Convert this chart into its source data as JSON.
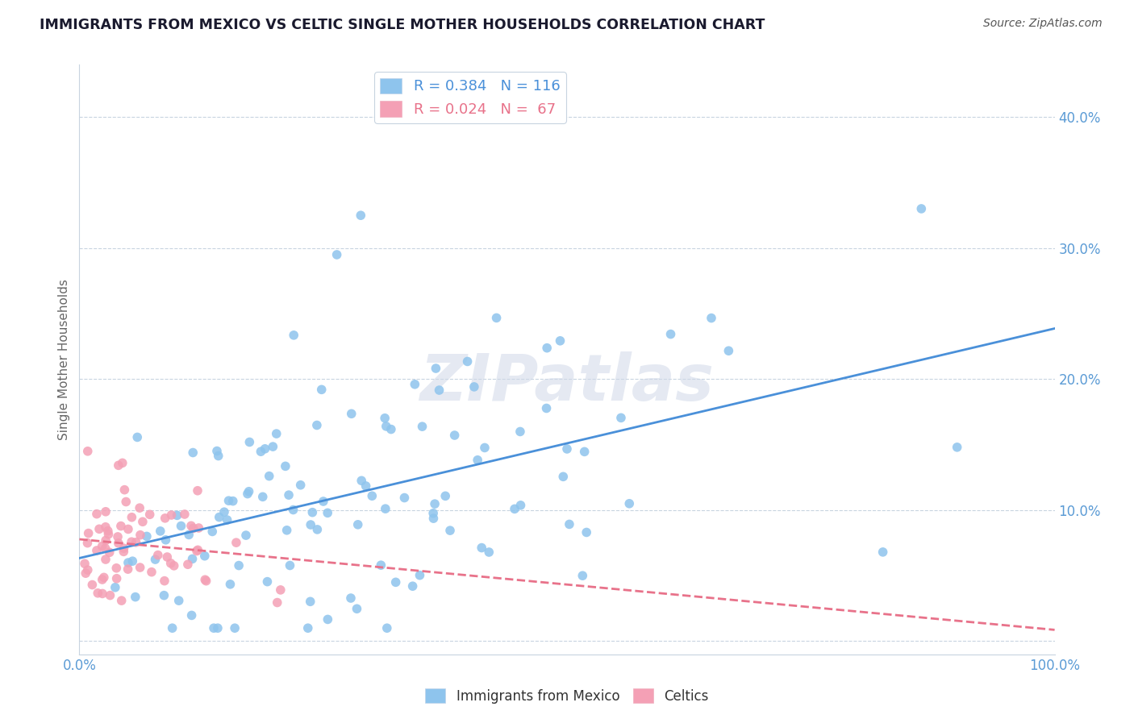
{
  "title": "IMMIGRANTS FROM MEXICO VS CELTIC SINGLE MOTHER HOUSEHOLDS CORRELATION CHART",
  "source": "Source: ZipAtlas.com",
  "ylabel": "Single Mother Households",
  "series1_label": "Immigrants from Mexico",
  "series2_label": "Celtics",
  "R1": 0.384,
  "N1": 116,
  "R2": 0.024,
  "N2": 67,
  "color1": "#8EC4ED",
  "color2": "#F4A0B5",
  "trendline1_color": "#4a90d9",
  "trendline2_color": "#e8728a",
  "background_color": "#ffffff",
  "axis_label_color": "#5b9bd5",
  "xlim": [
    0,
    1.0
  ],
  "ylim": [
    -0.01,
    0.44
  ],
  "watermark": "ZIPatlas",
  "legend_R1_text": "R = 0.384   N = 116",
  "legend_R2_text": "R = 0.024   N =  67"
}
